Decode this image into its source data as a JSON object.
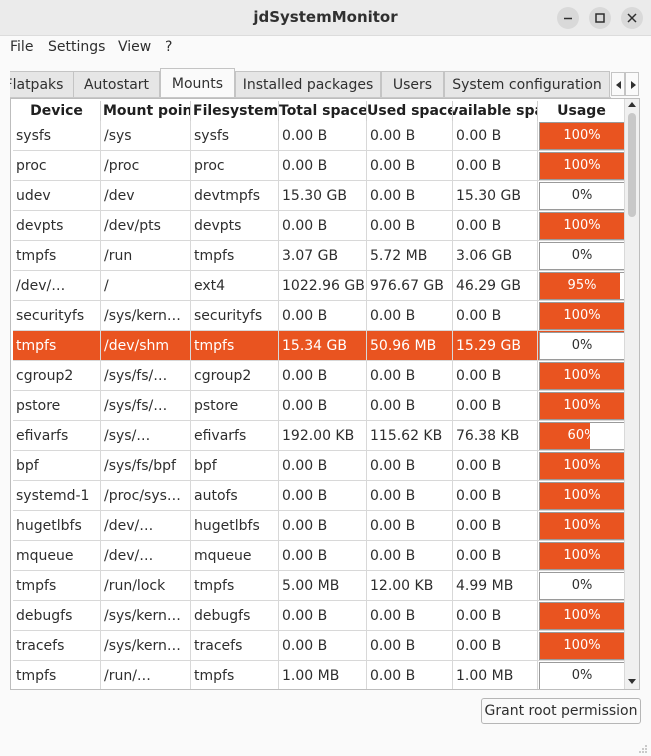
{
  "window": {
    "title": "jdSystemMonitor"
  },
  "menu": [
    "File",
    "Settings",
    "View",
    "?"
  ],
  "tabs": [
    "Flatpaks",
    "Autostart",
    "Mounts",
    "Installed packages",
    "Users",
    "System configuration"
  ],
  "active_tab": "Mounts",
  "table": {
    "columns": [
      "Device",
      "Mount point",
      "Filesystem",
      "Total space",
      "Used space",
      "Available space",
      "Usage"
    ],
    "rows": [
      [
        "sysfs",
        "/sys",
        "sysfs",
        "0.00 B",
        "0.00 B",
        "0.00 B",
        "100%"
      ],
      [
        "proc",
        "/proc",
        "proc",
        "0.00 B",
        "0.00 B",
        "0.00 B",
        "100%"
      ],
      [
        "udev",
        "/dev",
        "devtmpfs",
        "15.30 GB",
        "0.00 B",
        "15.30 GB",
        "0%"
      ],
      [
        "devpts",
        "/dev/pts",
        "devpts",
        "0.00 B",
        "0.00 B",
        "0.00 B",
        "100%"
      ],
      [
        "tmpfs",
        "/run",
        "tmpfs",
        "3.07 GB",
        "5.72 MB",
        "3.06 GB",
        "0%"
      ],
      [
        "/dev/…",
        "/",
        "ext4",
        "1022.96 GB",
        "976.67 GB",
        "46.29 GB",
        "95%"
      ],
      [
        "securityfs",
        "/sys/kern…",
        "securityfs",
        "0.00 B",
        "0.00 B",
        "0.00 B",
        "100%"
      ],
      [
        "tmpfs",
        "/dev/shm",
        "tmpfs",
        "15.34 GB",
        "50.96 MB",
        "15.29 GB",
        "0%"
      ],
      [
        "cgroup2",
        "/sys/fs/…",
        "cgroup2",
        "0.00 B",
        "0.00 B",
        "0.00 B",
        "100%"
      ],
      [
        "pstore",
        "/sys/fs/…",
        "pstore",
        "0.00 B",
        "0.00 B",
        "0.00 B",
        "100%"
      ],
      [
        "efivarfs",
        "/sys/…",
        "efivarfs",
        "192.00 KB",
        "115.62 KB",
        "76.38 KB",
        "60%"
      ],
      [
        "bpf",
        "/sys/fs/bpf",
        "bpf",
        "0.00 B",
        "0.00 B",
        "0.00 B",
        "100%"
      ],
      [
        "systemd-1",
        "/proc/sys…",
        "autofs",
        "0.00 B",
        "0.00 B",
        "0.00 B",
        "100%"
      ],
      [
        "hugetlbfs",
        "/dev/…",
        "hugetlbfs",
        "0.00 B",
        "0.00 B",
        "0.00 B",
        "100%"
      ],
      [
        "mqueue",
        "/dev/…",
        "mqueue",
        "0.00 B",
        "0.00 B",
        "0.00 B",
        "100%"
      ],
      [
        "tmpfs",
        "/run/lock",
        "tmpfs",
        "5.00 MB",
        "12.00 KB",
        "4.99 MB",
        "0%"
      ],
      [
        "debugfs",
        "/sys/kern…",
        "debugfs",
        "0.00 B",
        "0.00 B",
        "0.00 B",
        "100%"
      ],
      [
        "tracefs",
        "/sys/kern…",
        "tracefs",
        "0.00 B",
        "0.00 B",
        "0.00 B",
        "100%"
      ],
      [
        "tmpfs",
        "/run/…",
        "tmpfs",
        "1.00 MB",
        "0.00 B",
        "1.00 MB",
        "0%"
      ]
    ],
    "selected_row": 7,
    "usage_values": [
      1,
      1,
      0,
      1,
      0,
      0.95,
      1,
      0,
      1,
      1,
      0.6,
      1,
      1,
      1,
      1,
      0,
      1,
      1,
      0
    ]
  },
  "buttons": {
    "grant_root": "Grant root permission"
  },
  "colors": {
    "accent": "#e95420",
    "selection": "#e95420"
  }
}
